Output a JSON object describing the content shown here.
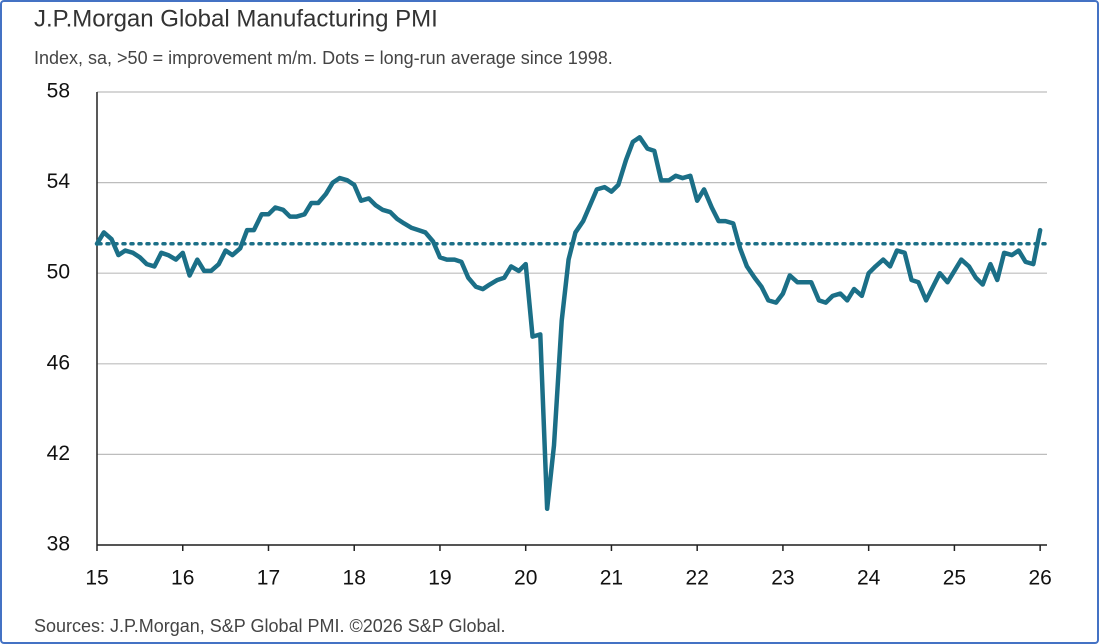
{
  "chart_data": {
    "type": "line",
    "title": "J.P.Morgan Global Manufacturing PMI",
    "subtitle": "Index, sa, >50 = improvement m/m. Dots = long-run average since 1998.",
    "source": "Sources: J.P.Morgan, S&P Global PMI. ©2026 S&P Global.",
    "color": "#1b6f87",
    "average_line": 51.3,
    "grid": true,
    "xlim": [
      15,
      26.08
    ],
    "xticks": [
      15,
      16,
      17,
      18,
      19,
      20,
      21,
      22,
      23,
      24,
      25,
      26
    ],
    "ylim": [
      38,
      58
    ],
    "yticks": [
      38,
      42,
      46,
      50,
      54,
      58
    ],
    "x": [
      15.0,
      15.08,
      15.17,
      15.25,
      15.33,
      15.42,
      15.5,
      15.58,
      15.67,
      15.75,
      15.83,
      15.92,
      16.0,
      16.08,
      16.17,
      16.25,
      16.33,
      16.42,
      16.5,
      16.58,
      16.67,
      16.75,
      16.83,
      16.92,
      17.0,
      17.08,
      17.17,
      17.25,
      17.33,
      17.42,
      17.5,
      17.58,
      17.67,
      17.75,
      17.83,
      17.92,
      18.0,
      18.08,
      18.17,
      18.25,
      18.33,
      18.42,
      18.5,
      18.58,
      18.67,
      18.75,
      18.83,
      18.92,
      19.0,
      19.08,
      19.17,
      19.25,
      19.33,
      19.42,
      19.5,
      19.58,
      19.67,
      19.75,
      19.83,
      19.92,
      20.0,
      20.08,
      20.17,
      20.25,
      20.33,
      20.42,
      20.5,
      20.58,
      20.67,
      20.75,
      20.83,
      20.92,
      21.0,
      21.08,
      21.17,
      21.25,
      21.33,
      21.42,
      21.5,
      21.58,
      21.67,
      21.75,
      21.83,
      21.92,
      22.0,
      22.08,
      22.17,
      22.25,
      22.33,
      22.42,
      22.5,
      22.58,
      22.67,
      22.75,
      22.83,
      22.92,
      23.0,
      23.08,
      23.17,
      23.25,
      23.33,
      23.42,
      23.5,
      23.58,
      23.67,
      23.75,
      23.83,
      23.92,
      24.0,
      24.08,
      24.17,
      24.25,
      24.33,
      24.42,
      24.5,
      24.58,
      24.67,
      24.75,
      24.83,
      24.92,
      25.0,
      25.08,
      25.17,
      25.25,
      25.33,
      25.42,
      25.5,
      25.58,
      25.67,
      25.75,
      25.83,
      25.92,
      26.0
    ],
    "values": [
      51.3,
      51.8,
      51.5,
      50.8,
      51.0,
      50.9,
      50.7,
      50.4,
      50.3,
      50.9,
      50.8,
      50.6,
      50.9,
      49.9,
      50.6,
      50.1,
      50.1,
      50.4,
      51.0,
      50.8,
      51.1,
      51.9,
      51.9,
      52.6,
      52.6,
      52.9,
      52.8,
      52.5,
      52.5,
      52.6,
      53.1,
      53.1,
      53.5,
      54.0,
      54.2,
      54.1,
      53.9,
      53.2,
      53.3,
      53.0,
      52.8,
      52.7,
      52.4,
      52.2,
      52.0,
      51.9,
      51.8,
      51.4,
      50.7,
      50.6,
      50.6,
      50.5,
      49.8,
      49.4,
      49.3,
      49.5,
      49.7,
      49.8,
      50.3,
      50.1,
      50.4,
      47.2,
      47.3,
      39.6,
      42.4,
      47.9,
      50.6,
      51.8,
      52.3,
      53.0,
      53.7,
      53.8,
      53.6,
      53.9,
      55.0,
      55.8,
      56.0,
      55.5,
      55.4,
      54.1,
      54.1,
      54.3,
      54.2,
      54.3,
      53.2,
      53.7,
      52.9,
      52.3,
      52.3,
      52.2,
      51.1,
      50.3,
      49.8,
      49.4,
      48.8,
      48.7,
      49.1,
      49.9,
      49.6,
      49.6,
      49.6,
      48.8,
      48.7,
      49.0,
      49.1,
      48.8,
      49.3,
      49.0,
      50.0,
      50.3,
      50.6,
      50.3,
      51.0,
      50.9,
      49.7,
      49.6,
      48.8,
      49.4,
      50.0,
      49.6,
      50.1,
      50.6,
      50.3,
      49.8,
      49.5,
      50.4,
      49.7,
      50.9,
      50.8,
      51.0,
      50.5,
      50.4,
      51.9
    ]
  }
}
